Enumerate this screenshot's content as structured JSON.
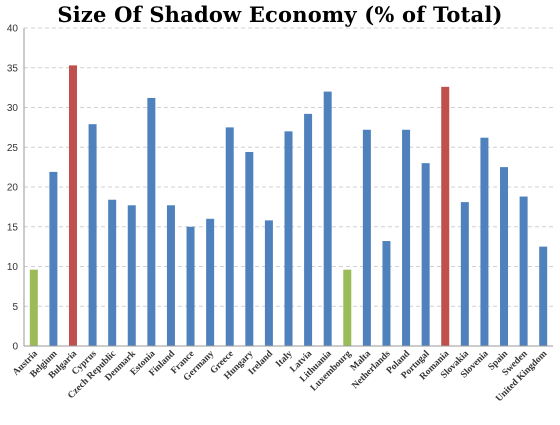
{
  "chart_data": {
    "type": "bar",
    "title": "Size Of Shadow Economy (% of Total)",
    "xlabel": "",
    "ylabel": "",
    "ylim": [
      0,
      40
    ],
    "yticks": [
      0,
      5,
      10,
      15,
      20,
      25,
      30,
      35,
      40
    ],
    "grid": true,
    "legend": "none",
    "colors": {
      "default": "#4f81bd",
      "high": "#c0504d",
      "low": "#9bbb59"
    },
    "categories": [
      "Austria",
      "Belgium",
      "Bulgaria",
      "Cyprus",
      "Czech Republic",
      "Denmark",
      "Estonia",
      "Finland",
      "France",
      "Germany",
      "Greece",
      "Hungary",
      "Ireland",
      "Italy",
      "Latvia",
      "Lithuania",
      "Luxembourg",
      "Malta",
      "Netherlands",
      "Poland",
      "Portugal",
      "Romania",
      "Slovakia",
      "Slovenia",
      "Spain",
      "Sweden",
      "United Kingdom"
    ],
    "values": [
      9.6,
      21.9,
      35.3,
      27.9,
      18.4,
      17.7,
      31.2,
      17.7,
      15.0,
      16.0,
      27.5,
      24.4,
      15.8,
      27.0,
      29.2,
      32.0,
      9.6,
      27.2,
      13.2,
      27.2,
      23.0,
      32.6,
      18.1,
      26.2,
      22.5,
      18.8,
      12.5
    ],
    "bar_color_keys": [
      "low",
      "default",
      "high",
      "default",
      "default",
      "default",
      "default",
      "default",
      "default",
      "default",
      "default",
      "default",
      "default",
      "default",
      "default",
      "default",
      "low",
      "default",
      "default",
      "default",
      "default",
      "high",
      "default",
      "default",
      "default",
      "default",
      "default"
    ]
  }
}
